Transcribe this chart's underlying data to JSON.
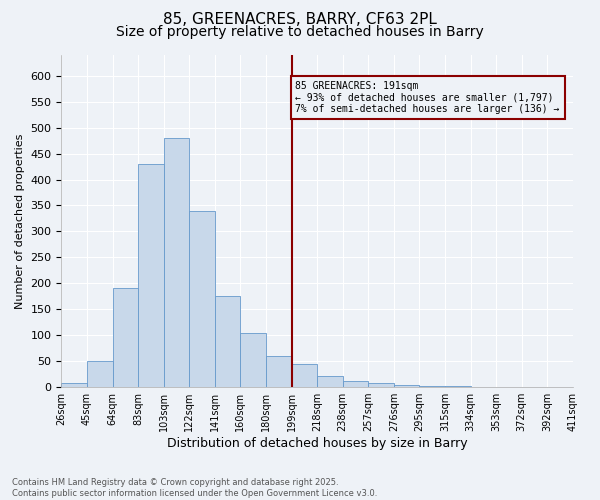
{
  "title_line1": "85, GREENACRES, BARRY, CF63 2PL",
  "title_line2": "Size of property relative to detached houses in Barry",
  "xlabel": "Distribution of detached houses by size in Barry",
  "ylabel": "Number of detached properties",
  "annotation_title": "85 GREENACRES: 191sqm",
  "annotation_line2": "← 93% of detached houses are smaller (1,797)",
  "annotation_line3": "7% of semi-detached houses are larger (136) →",
  "footer_line1": "Contains HM Land Registry data © Crown copyright and database right 2025.",
  "footer_line2": "Contains public sector information licensed under the Open Government Licence v3.0.",
  "bin_labels": [
    "26sqm",
    "45sqm",
    "64sqm",
    "83sqm",
    "103sqm",
    "122sqm",
    "141sqm",
    "160sqm",
    "180sqm",
    "199sqm",
    "218sqm",
    "238sqm",
    "257sqm",
    "276sqm",
    "295sqm",
    "315sqm",
    "334sqm",
    "353sqm",
    "372sqm",
    "392sqm",
    "411sqm"
  ],
  "bar_values": [
    7,
    50,
    190,
    430,
    480,
    340,
    175,
    105,
    60,
    45,
    22,
    12,
    8,
    4,
    2,
    2,
    1,
    0,
    1,
    0
  ],
  "bar_color": "#c8d8ea",
  "bar_edge_color": "#6699cc",
  "vline_color": "#8b0000",
  "vline_bin_index": 9,
  "annotation_box_color": "#8b0000",
  "background_color": "#eef2f7",
  "plot_bg_color": "#eef2f7",
  "ylim": [
    0,
    640
  ],
  "yticks": [
    0,
    50,
    100,
    150,
    200,
    250,
    300,
    350,
    400,
    450,
    500,
    550,
    600
  ],
  "title_fontsize": 11,
  "subtitle_fontsize": 10,
  "grid_color": "#ffffff"
}
